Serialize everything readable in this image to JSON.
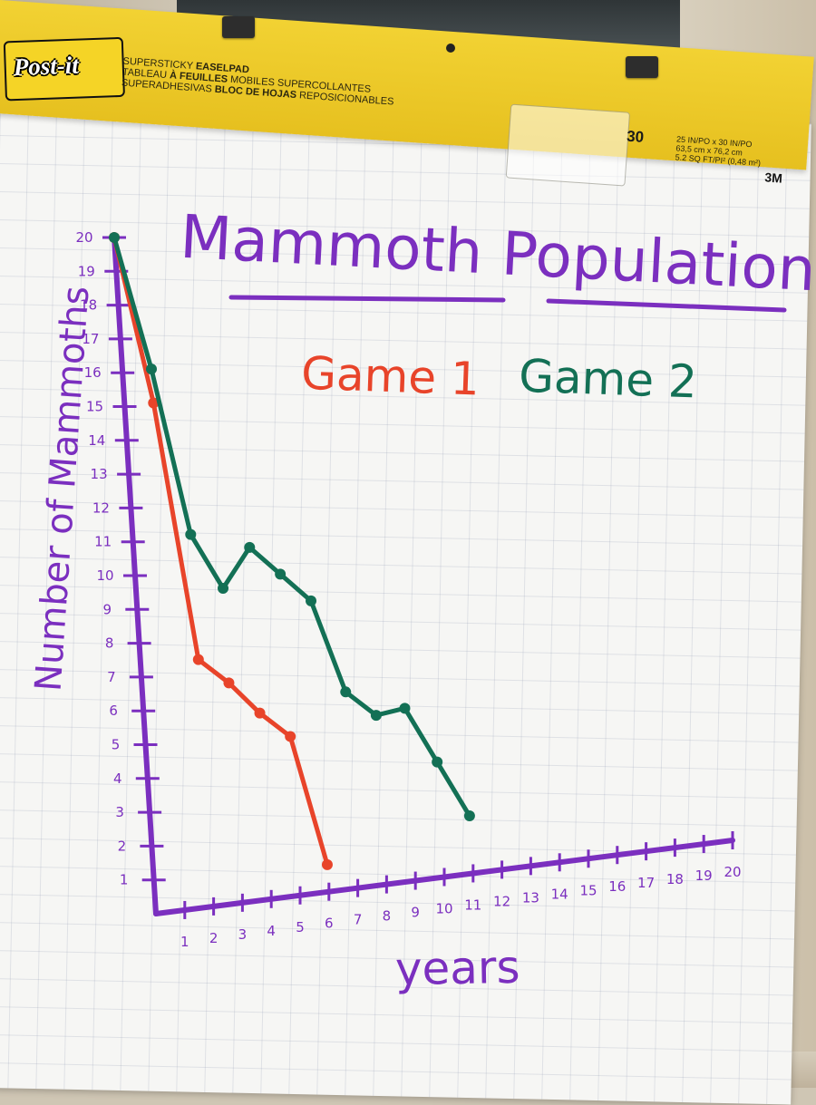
{
  "header": {
    "logo": "Post-it",
    "line1_a": "SUPERSTICKY ",
    "line1_b": "EASELPAD",
    "line2_a": "TABLEAU ",
    "line2_b": "À FEUILLES",
    "line2_c": " MOBILES SUPERCOLLANTES",
    "line3_a": "SUPERADHESIVAS ",
    "line3_b": "BLOC DE HOJAS",
    "line3_c": " REPOSICIONABLES",
    "sheet_count": "30",
    "spec_1": "25 IN/PO x 30 IN/PO",
    "spec_2": "63,5 cm x 76,2 cm",
    "spec_3": "5.2 SQ FT/PI² (0,48 m²)",
    "brand": "3M"
  },
  "colors": {
    "purple": "#7b2fbf",
    "game1": "#e8442a",
    "game2": "#137055"
  },
  "chart_data": {
    "type": "line",
    "title": "Mammoth Population",
    "xlabel": "years",
    "ylabel": "Number of Mammoths",
    "xlim": [
      0,
      20
    ],
    "ylim": [
      0,
      20
    ],
    "x_ticks": [
      "1",
      "2",
      "3",
      "4",
      "5",
      "6",
      "7",
      "8",
      "9",
      "10",
      "11",
      "12",
      "13",
      "14",
      "15",
      "16",
      "17",
      "18",
      "19",
      "20"
    ],
    "y_ticks": [
      "1",
      "2",
      "3",
      "4",
      "5",
      "6",
      "7",
      "8",
      "9",
      "10",
      "11",
      "12",
      "13",
      "14",
      "15",
      "16",
      "17",
      "18",
      "19",
      "20"
    ],
    "grid": true,
    "legend": "top",
    "series": [
      {
        "name": "Game 1",
        "color": "#e8442a",
        "x": [
          0,
          1,
          2,
          3,
          4,
          5,
          6
        ],
        "y": [
          20,
          15,
          7.3,
          6.5,
          5.5,
          4.7,
          0.8
        ]
      },
      {
        "name": "Game 2",
        "color": "#137055",
        "x": [
          0,
          1,
          2,
          3,
          4,
          5,
          6,
          7,
          8,
          9,
          10,
          11
        ],
        "y": [
          20,
          16,
          11,
          9.3,
          10.4,
          9.5,
          8.6,
          5.8,
          5,
          5.1,
          3.4,
          1.7
        ]
      }
    ]
  }
}
